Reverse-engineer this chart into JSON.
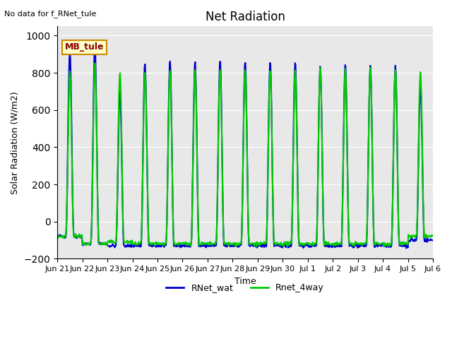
{
  "title": "Net Radiation",
  "ylabel": "Solar Radiation (W/m2)",
  "xlabel": "Time",
  "no_data_text": "No data for f_RNet_tule",
  "legend_label_box": "MB_tule",
  "ylim": [
    -200,
    1050
  ],
  "series": [
    {
      "label": "RNet_wat",
      "color": "#0000cc",
      "lw": 1.5
    },
    {
      "label": "Rnet_4way",
      "color": "#00cc00",
      "lw": 1.5
    }
  ],
  "bg_color": "#e8e8e8",
  "tick_labels": [
    "Jun 21",
    "Jun 22",
    "Jun 23",
    "Jun 24",
    "Jun 25",
    "Jun 26",
    "Jun 27",
    "Jun 28",
    "Jun 29",
    "Jun 30",
    "Jul 1",
    "Jul 2",
    "Jul 3",
    "Jul 4",
    "Jul 5",
    "Jul 6"
  ],
  "num_days": 16
}
